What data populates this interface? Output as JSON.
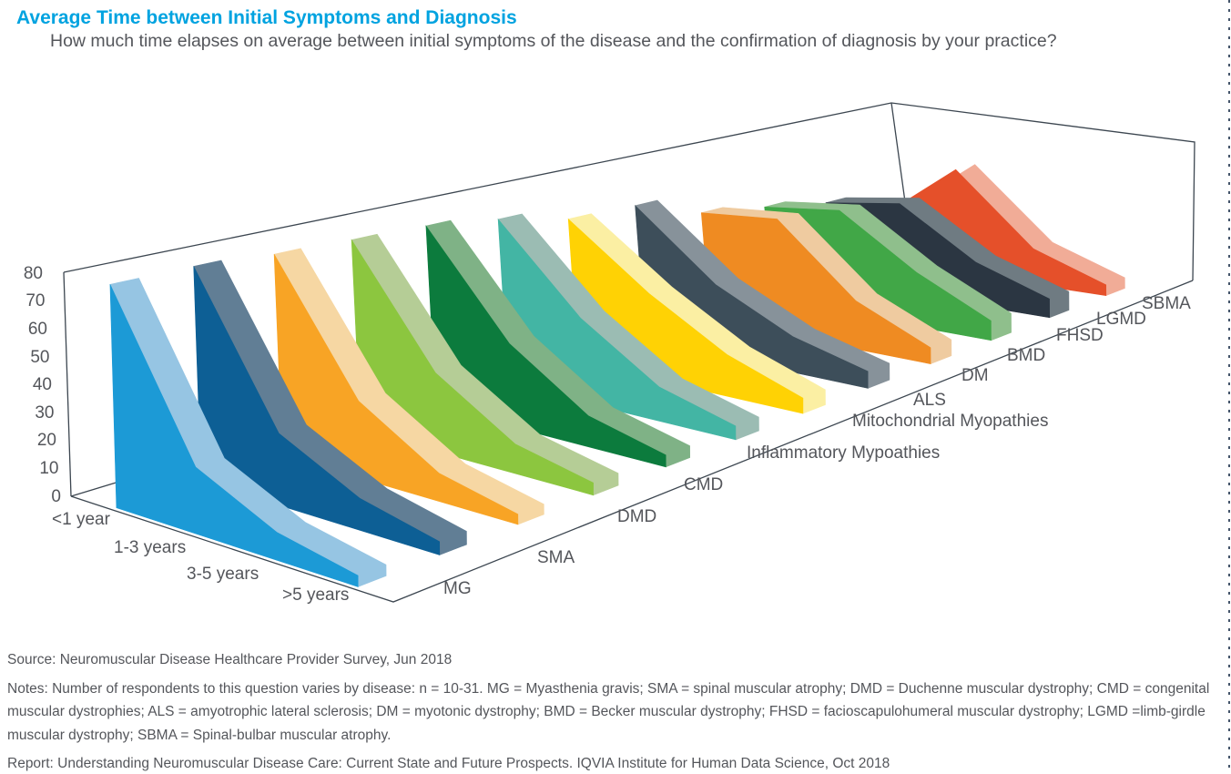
{
  "page": {
    "title": "Average Time between Initial Symptoms and Diagnosis",
    "subtitle": "How much time elapses on average between initial symptoms of the disease and the confirmation of diagnosis by your practice?"
  },
  "footer": {
    "source": "Source: Neuromuscular Disease Healthcare Provider Survey, Jun 2018",
    "notes": "Notes: Number of respondents to this question varies by disease: n = 10-31. MG = Myasthenia gravis; SMA = spinal muscular atrophy; DMD = Duchenne muscular dystrophy; CMD = congenital muscular dystrophies; ALS = amyotrophic lateral sclerosis; DM = myotonic dystrophy; BMD = Becker muscular dystrophy; FHSD = facioscapulohumeral muscular dystrophy; LGMD =limb-girdle muscular dystrophy; SBMA = Spinal-bulbar muscular atrophy.",
    "report": "Report: Understanding Neuromuscular Disease Care: Current State and Future Prospects. IQVIA Institute for Human Data Science, Oct 2018"
  },
  "style": {
    "accent": "#00A3E0",
    "text": "#54565B",
    "axis_line": "#3C4650"
  },
  "chart_data": {
    "type": "area",
    "projection": "3d-ribbon",
    "title": "Average Time between Initial Symptoms and Diagnosis",
    "categories": [
      "<1 year",
      "1-3 years",
      "3-5 years",
      ">5 years"
    ],
    "value_axis": {
      "min": 0,
      "max": 80,
      "tick_step": 10,
      "ticks": [
        0,
        10,
        20,
        30,
        40,
        50,
        60,
        70,
        80
      ]
    },
    "legend_position": "series labels along depth axis",
    "grid": false,
    "series": [
      {
        "name": "MG",
        "color": "#1C9AD6",
        "side_color": "#96C5E3",
        "values": [
          80,
          24,
          10,
          4
        ]
      },
      {
        "name": "SMA",
        "color": "#0D5F95",
        "side_color": "#617E95",
        "values": [
          80,
          27,
          12,
          5
        ]
      },
      {
        "name": "DMD",
        "color": "#F8A425",
        "side_color": "#F6D7A3",
        "values": [
          78,
          30,
          11,
          4
        ]
      },
      {
        "name": "CMD",
        "color": "#8CC63F",
        "side_color": "#B5CD96",
        "values": [
          77,
          32,
          12,
          5
        ]
      },
      {
        "name": "Inflammatory Mypoathies",
        "color": "#0C7B3D",
        "side_color": "#7FB286",
        "values": [
          76,
          35,
          13,
          5
        ]
      },
      {
        "name": "Mitochondrial Myopathies",
        "color": "#43B5A4",
        "side_color": "#9BBCB3",
        "values": [
          72,
          37,
          15,
          6
        ]
      },
      {
        "name": "ALS",
        "color": "#FFD204",
        "side_color": "#FBEFA3",
        "values": [
          65,
          39,
          19,
          7
        ]
      },
      {
        "name": "DM",
        "color": "#3D4E5A",
        "side_color": "#87929A",
        "values": [
          64,
          34,
          17,
          8
        ]
      },
      {
        "name": "BMD",
        "color": "#EF8B22",
        "side_color": "#EFCBA0",
        "values": [
          53,
          57,
          24,
          8
        ]
      },
      {
        "name": "FHSD",
        "color": "#41A747",
        "side_color": "#8FBF8C",
        "values": [
          48,
          53,
          28,
          10
        ]
      },
      {
        "name": "LGMD",
        "color": "#2B3642",
        "side_color": "#6F7B82",
        "values": [
          42,
          48,
          23,
          10
        ]
      },
      {
        "name": "SBMA",
        "color": "#E5502A",
        "side_color": "#F1AC97",
        "values": [
          28,
          58,
          20,
          6
        ]
      }
    ]
  }
}
